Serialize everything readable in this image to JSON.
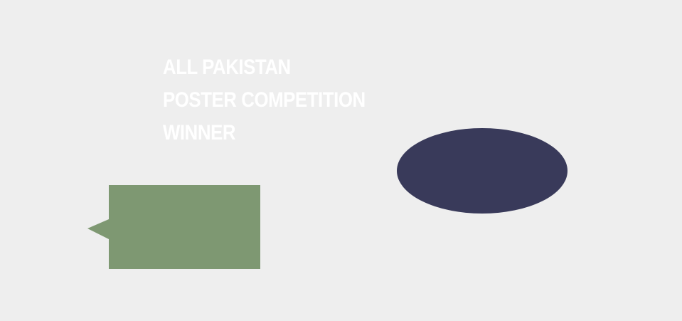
{
  "headline": {
    "lines": [
      "ALL PAKISTAN",
      "POSTER COMPETITION",
      "WINNER"
    ]
  },
  "colors": {
    "background": "#eeeeee",
    "headline_text": "#ffffff",
    "callout_fill": "#7e9872",
    "ellipse_fill": "#393a5a"
  }
}
